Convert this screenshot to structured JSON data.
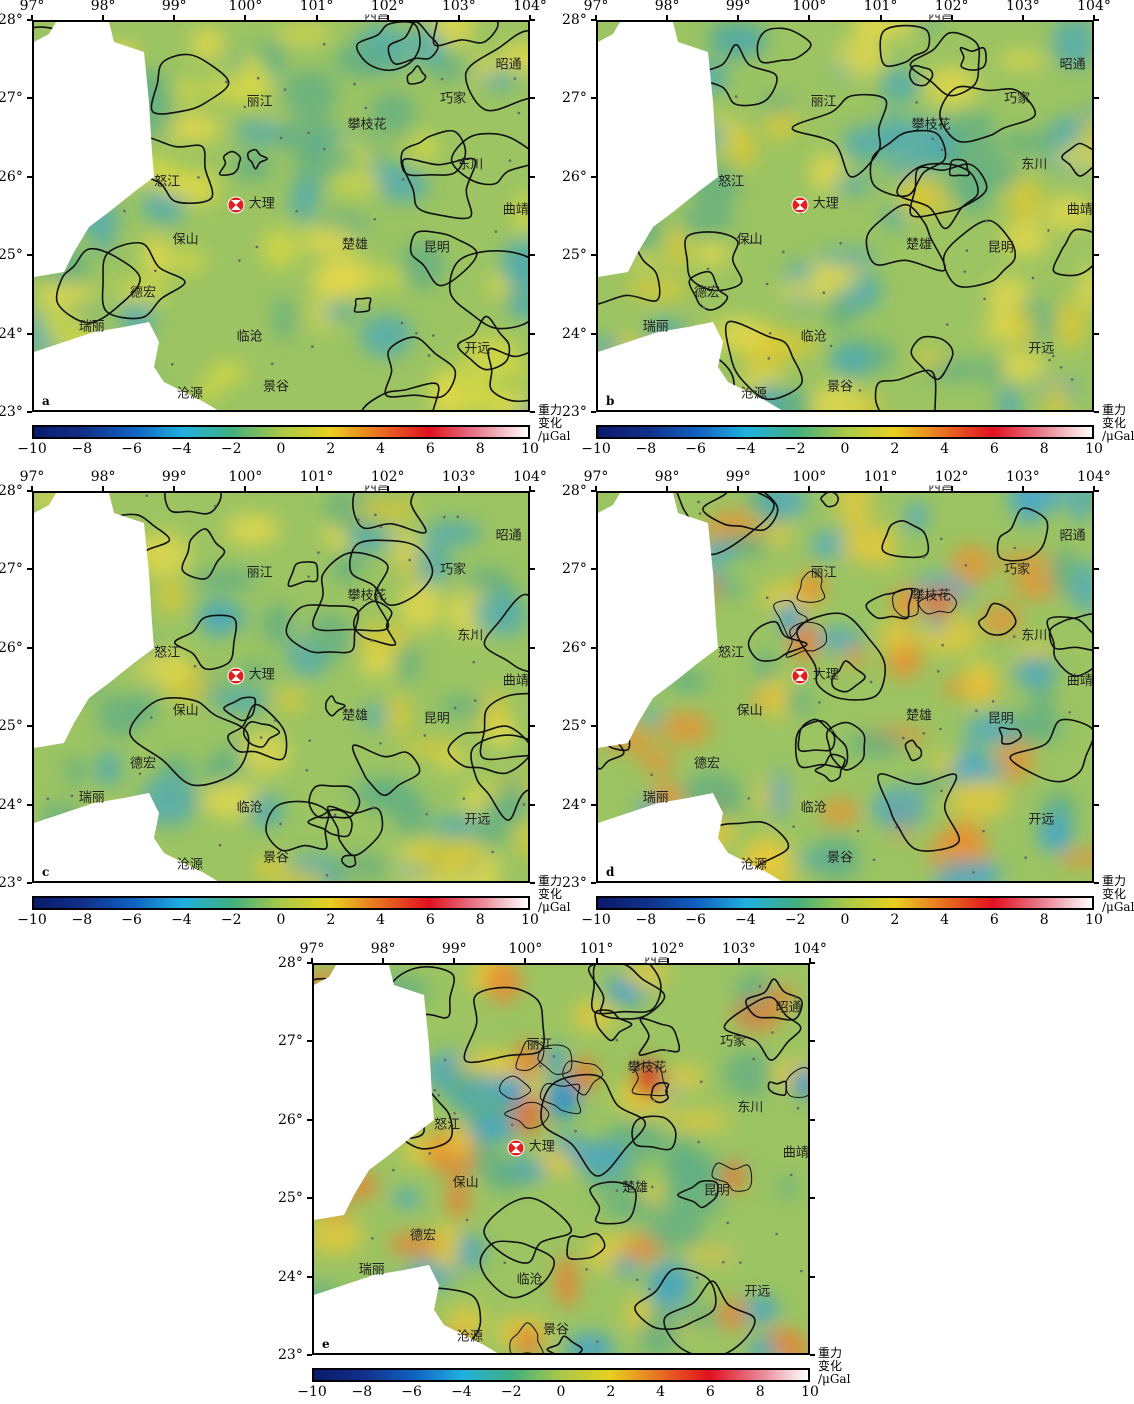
{
  "axes": {
    "lon_labels": [
      "97°",
      "98°",
      "99°",
      "100°",
      "101°",
      "102°",
      "103°",
      "104°"
    ],
    "lat_labels": [
      "28°",
      "27°",
      "26°",
      "25°",
      "24°",
      "23°"
    ]
  },
  "colorbar": {
    "title_lines": [
      "重力",
      "变化",
      "/μGal"
    ],
    "ticks": [
      "−10",
      "−8",
      "−6",
      "−4",
      "−2",
      "0",
      "2",
      "4",
      "6",
      "8",
      "10"
    ],
    "colors": [
      "#0a1a6a",
      "#10308a",
      "#1060c0",
      "#20b0e0",
      "#40b080",
      "#a8c848",
      "#e8d020",
      "#e87020",
      "#e01020",
      "#e88090",
      "#ffffff"
    ]
  },
  "panels": [
    {
      "letter": "a"
    },
    {
      "letter": "b"
    },
    {
      "letter": "c"
    },
    {
      "letter": "d"
    },
    {
      "letter": "e"
    }
  ],
  "epicenter": {
    "lon": 99.87,
    "lat": 25.64
  },
  "cities": [
    {
      "name": "西昌",
      "lon": 101.85,
      "lat": 28.06
    },
    {
      "name": "昭通",
      "lon": 103.7,
      "lat": 27.45
    },
    {
      "name": "丽江",
      "lon": 100.2,
      "lat": 26.98
    },
    {
      "name": "巧家",
      "lon": 102.92,
      "lat": 27.02
    },
    {
      "name": "攀枝花",
      "lon": 101.71,
      "lat": 26.69
    },
    {
      "name": "东川",
      "lon": 103.16,
      "lat": 26.18
    },
    {
      "name": "怒江",
      "lon": 98.9,
      "lat": 25.96
    },
    {
      "name": "大理",
      "lon": 100.23,
      "lat": 25.68
    },
    {
      "name": "曲靖",
      "lon": 103.8,
      "lat": 25.6
    },
    {
      "name": "保山",
      "lon": 99.16,
      "lat": 25.22
    },
    {
      "name": "楚雄",
      "lon": 101.54,
      "lat": 25.16
    },
    {
      "name": "昆明",
      "lon": 102.69,
      "lat": 25.12
    },
    {
      "name": "德宏",
      "lon": 98.56,
      "lat": 24.54
    },
    {
      "name": "瑞丽",
      "lon": 97.84,
      "lat": 24.11
    },
    {
      "name": "临沧",
      "lon": 100.06,
      "lat": 23.98
    },
    {
      "name": "开远",
      "lon": 103.26,
      "lat": 23.83
    },
    {
      "name": "沧源",
      "lon": 99.22,
      "lat": 23.26
    },
    {
      "name": "景谷",
      "lon": 100.43,
      "lat": 23.34
    }
  ]
}
